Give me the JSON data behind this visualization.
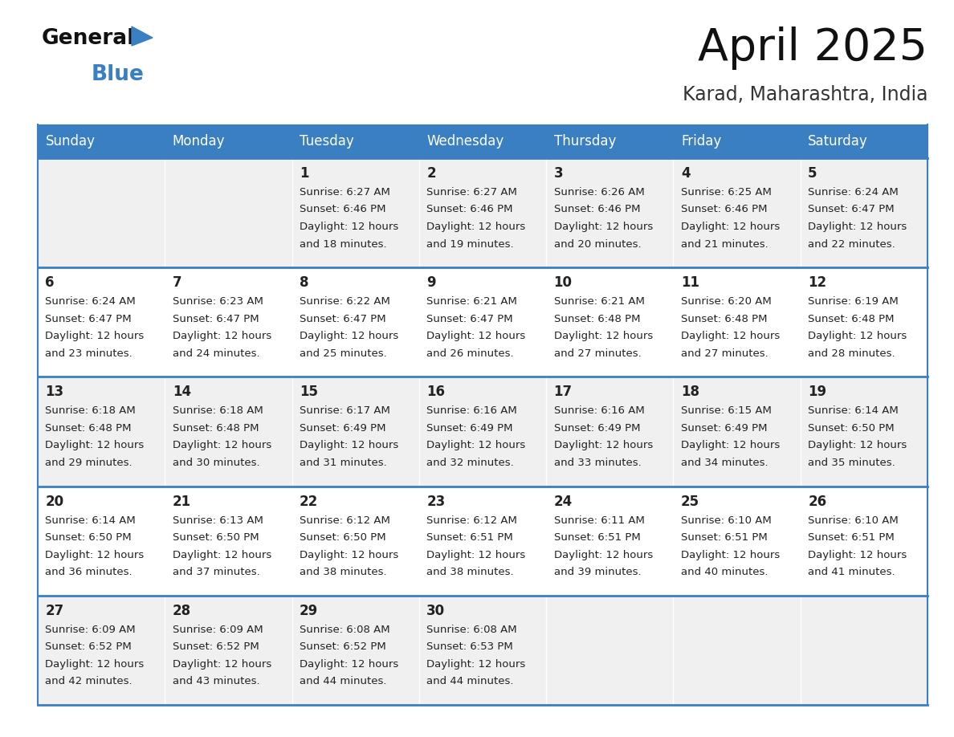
{
  "title": "April 2025",
  "subtitle": "Karad, Maharashtra, India",
  "header_bg": "#3A7FC1",
  "header_text": "#FFFFFF",
  "days_of_week": [
    "Sunday",
    "Monday",
    "Tuesday",
    "Wednesday",
    "Thursday",
    "Friday",
    "Saturday"
  ],
  "cell_bg_light": "#F0F0F0",
  "cell_bg_white": "#FFFFFF",
  "cell_text_color": "#222222",
  "border_color": "#3A7FC1",
  "calendar_data": [
    [
      {
        "day": "",
        "sunrise": "",
        "sunset": "",
        "daylight_text": ""
      },
      {
        "day": "",
        "sunrise": "",
        "sunset": "",
        "daylight_text": ""
      },
      {
        "day": "1",
        "sunrise": "6:27 AM",
        "sunset": "6:46 PM",
        "daylight_text": "and 18 minutes."
      },
      {
        "day": "2",
        "sunrise": "6:27 AM",
        "sunset": "6:46 PM",
        "daylight_text": "and 19 minutes."
      },
      {
        "day": "3",
        "sunrise": "6:26 AM",
        "sunset": "6:46 PM",
        "daylight_text": "and 20 minutes."
      },
      {
        "day": "4",
        "sunrise": "6:25 AM",
        "sunset": "6:46 PM",
        "daylight_text": "and 21 minutes."
      },
      {
        "day": "5",
        "sunrise": "6:24 AM",
        "sunset": "6:47 PM",
        "daylight_text": "and 22 minutes."
      }
    ],
    [
      {
        "day": "6",
        "sunrise": "6:24 AM",
        "sunset": "6:47 PM",
        "daylight_text": "and 23 minutes."
      },
      {
        "day": "7",
        "sunrise": "6:23 AM",
        "sunset": "6:47 PM",
        "daylight_text": "and 24 minutes."
      },
      {
        "day": "8",
        "sunrise": "6:22 AM",
        "sunset": "6:47 PM",
        "daylight_text": "and 25 minutes."
      },
      {
        "day": "9",
        "sunrise": "6:21 AM",
        "sunset": "6:47 PM",
        "daylight_text": "and 26 minutes."
      },
      {
        "day": "10",
        "sunrise": "6:21 AM",
        "sunset": "6:48 PM",
        "daylight_text": "and 27 minutes."
      },
      {
        "day": "11",
        "sunrise": "6:20 AM",
        "sunset": "6:48 PM",
        "daylight_text": "and 27 minutes."
      },
      {
        "day": "12",
        "sunrise": "6:19 AM",
        "sunset": "6:48 PM",
        "daylight_text": "and 28 minutes."
      }
    ],
    [
      {
        "day": "13",
        "sunrise": "6:18 AM",
        "sunset": "6:48 PM",
        "daylight_text": "and 29 minutes."
      },
      {
        "day": "14",
        "sunrise": "6:18 AM",
        "sunset": "6:48 PM",
        "daylight_text": "and 30 minutes."
      },
      {
        "day": "15",
        "sunrise": "6:17 AM",
        "sunset": "6:49 PM",
        "daylight_text": "and 31 minutes."
      },
      {
        "day": "16",
        "sunrise": "6:16 AM",
        "sunset": "6:49 PM",
        "daylight_text": "and 32 minutes."
      },
      {
        "day": "17",
        "sunrise": "6:16 AM",
        "sunset": "6:49 PM",
        "daylight_text": "and 33 minutes."
      },
      {
        "day": "18",
        "sunrise": "6:15 AM",
        "sunset": "6:49 PM",
        "daylight_text": "and 34 minutes."
      },
      {
        "day": "19",
        "sunrise": "6:14 AM",
        "sunset": "6:50 PM",
        "daylight_text": "and 35 minutes."
      }
    ],
    [
      {
        "day": "20",
        "sunrise": "6:14 AM",
        "sunset": "6:50 PM",
        "daylight_text": "and 36 minutes."
      },
      {
        "day": "21",
        "sunrise": "6:13 AM",
        "sunset": "6:50 PM",
        "daylight_text": "and 37 minutes."
      },
      {
        "day": "22",
        "sunrise": "6:12 AM",
        "sunset": "6:50 PM",
        "daylight_text": "and 38 minutes."
      },
      {
        "day": "23",
        "sunrise": "6:12 AM",
        "sunset": "6:51 PM",
        "daylight_text": "and 38 minutes."
      },
      {
        "day": "24",
        "sunrise": "6:11 AM",
        "sunset": "6:51 PM",
        "daylight_text": "and 39 minutes."
      },
      {
        "day": "25",
        "sunrise": "6:10 AM",
        "sunset": "6:51 PM",
        "daylight_text": "and 40 minutes."
      },
      {
        "day": "26",
        "sunrise": "6:10 AM",
        "sunset": "6:51 PM",
        "daylight_text": "and 41 minutes."
      }
    ],
    [
      {
        "day": "27",
        "sunrise": "6:09 AM",
        "sunset": "6:52 PM",
        "daylight_text": "and 42 minutes."
      },
      {
        "day": "28",
        "sunrise": "6:09 AM",
        "sunset": "6:52 PM",
        "daylight_text": "and 43 minutes."
      },
      {
        "day": "29",
        "sunrise": "6:08 AM",
        "sunset": "6:52 PM",
        "daylight_text": "and 44 minutes."
      },
      {
        "day": "30",
        "sunrise": "6:08 AM",
        "sunset": "6:53 PM",
        "daylight_text": "and 44 minutes."
      },
      {
        "day": "",
        "sunrise": "",
        "sunset": "",
        "daylight_text": ""
      },
      {
        "day": "",
        "sunrise": "",
        "sunset": "",
        "daylight_text": ""
      },
      {
        "day": "",
        "sunrise": "",
        "sunset": "",
        "daylight_text": ""
      }
    ]
  ],
  "logo_text_general": "General",
  "logo_text_blue": "Blue",
  "logo_color_general": "#111111",
  "logo_color_blue": "#3A7FC1",
  "logo_triangle_color": "#3A7FC1"
}
